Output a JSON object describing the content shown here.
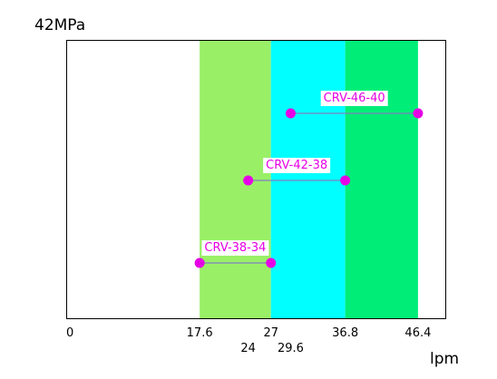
{
  "chart_data": {
    "type": "range",
    "ylabel": "42MPa",
    "xlabel": "lpm",
    "xlim": [
      0,
      50
    ],
    "bands": [
      {
        "from": 17.6,
        "to": 27,
        "color": "#99f066"
      },
      {
        "from": 27,
        "to": 36.8,
        "color": "#00ffff"
      },
      {
        "from": 36.8,
        "to": 46.4,
        "color": "#00ee77"
      }
    ],
    "x_ticks_row1": [
      {
        "value": 0,
        "label": "0"
      },
      {
        "value": 17.6,
        "label": "17.6"
      },
      {
        "value": 27,
        "label": "27"
      },
      {
        "value": 36.8,
        "label": "36.8"
      },
      {
        "value": 46.4,
        "label": "46.4"
      }
    ],
    "x_ticks_row2": [
      {
        "value": 24,
        "label": "24"
      },
      {
        "value": 29.6,
        "label": "29.6"
      }
    ],
    "series": [
      {
        "name": "CRV-38-34",
        "min": 17.6,
        "max": 27,
        "level": 1
      },
      {
        "name": "CRV-42-38",
        "min": 24,
        "max": 36.8,
        "level": 2
      },
      {
        "name": "CRV-46-40",
        "min": 29.6,
        "max": 46.4,
        "level": 3
      }
    ],
    "marker_color": "#e600e6",
    "line_color": "#8080c0"
  }
}
